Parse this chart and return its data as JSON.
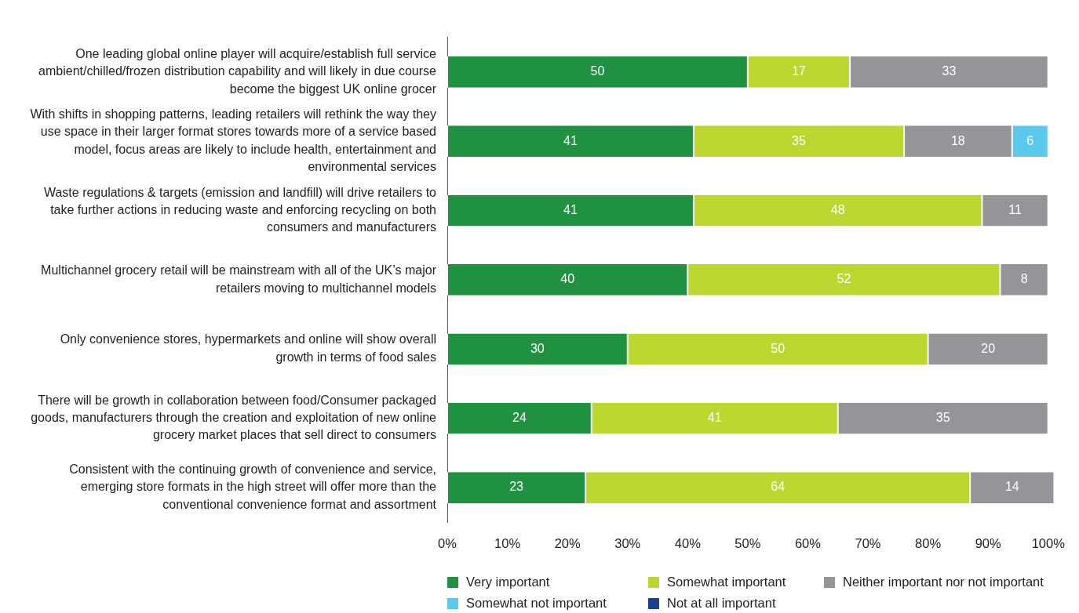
{
  "chart_data": {
    "type": "bar",
    "orientation": "horizontal",
    "stacked": true,
    "data_labels": true,
    "grid": false,
    "legend": "bottom",
    "categories": [
      "One leading global online player will acquire/establish full service ambient/chilled/frozen distribution capability and will likely in due course become the biggest UK online grocer",
      "With shifts in shopping patterns, leading retailers will rethink the way they use space in their larger format stores towards more of a service based model, focus areas are likely to include health, entertainment and environmental services",
      "Waste regulations & targets (emission and landfill) will drive retailers to take further actions in reducing waste and enforcing recycling on both consumers and manufacturers",
      "Multichannel grocery retail will be mainstream with all of the UK’s major retailers moving to multichannel models",
      "Only convenience stores, hypermarkets and online will show overall growth in terms of food sales",
      "There will be growth in collaboration between food/Consumer packaged goods, manufacturers through the creation and exploitation of new online grocery market places that sell direct to consumers",
      "Consistent with the continuing growth of convenience and service, emerging store formats in the high street will offer more than the conventional convenience format and assortment"
    ],
    "xlim": [
      0,
      101
    ],
    "xticks": [
      {
        "value": 0,
        "label": "0%"
      },
      {
        "value": 10,
        "label": "10%"
      },
      {
        "value": 20,
        "label": "20%"
      },
      {
        "value": 30,
        "label": "30%"
      },
      {
        "value": 40,
        "label": "40%"
      },
      {
        "value": 50,
        "label": "50%"
      },
      {
        "value": 60,
        "label": "60%"
      },
      {
        "value": 70,
        "label": "70%"
      },
      {
        "value": 80,
        "label": "80%"
      },
      {
        "value": 90,
        "label": "90%"
      },
      {
        "value": 100,
        "label": "100%"
      }
    ],
    "series": [
      {
        "name": "Very important",
        "color": "#1f9140",
        "values": [
          50,
          41,
          41,
          40,
          30,
          24,
          23
        ]
      },
      {
        "name": "Somewhat important",
        "color": "#bed630",
        "values": [
          17,
          35,
          48,
          52,
          50,
          41,
          64
        ]
      },
      {
        "name": "Neither important nor not important",
        "color": "#939598",
        "values": [
          33,
          18,
          11,
          8,
          20,
          35,
          14
        ]
      },
      {
        "name": "Somewhat not important",
        "color": "#5bc8ee",
        "values": [
          null,
          6,
          null,
          null,
          null,
          null,
          null
        ]
      },
      {
        "name": "Not at all important",
        "color": "#1c3f94",
        "values": [
          null,
          null,
          null,
          null,
          null,
          null,
          null
        ]
      }
    ]
  }
}
